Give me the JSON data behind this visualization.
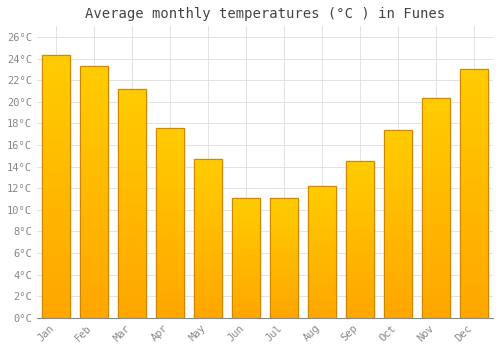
{
  "title": "Average monthly temperatures (°C ) in Funes",
  "months": [
    "Jan",
    "Feb",
    "Mar",
    "Apr",
    "May",
    "Jun",
    "Jul",
    "Aug",
    "Sep",
    "Oct",
    "Nov",
    "Dec"
  ],
  "values": [
    24.3,
    23.3,
    21.2,
    17.6,
    14.7,
    11.1,
    11.1,
    12.2,
    14.5,
    17.4,
    20.4,
    23.0
  ],
  "bar_color": "#FFAA00",
  "bar_edge_color": "#CC8800",
  "background_color": "#FFFFFF",
  "grid_color": "#DDDDDD",
  "ylim": [
    0,
    27
  ],
  "yticks": [
    0,
    2,
    4,
    6,
    8,
    10,
    12,
    14,
    16,
    18,
    20,
    22,
    24,
    26
  ],
  "title_fontsize": 10,
  "tick_fontsize": 7.5,
  "title_color": "#444444",
  "tick_color": "#888888",
  "font_family": "monospace"
}
